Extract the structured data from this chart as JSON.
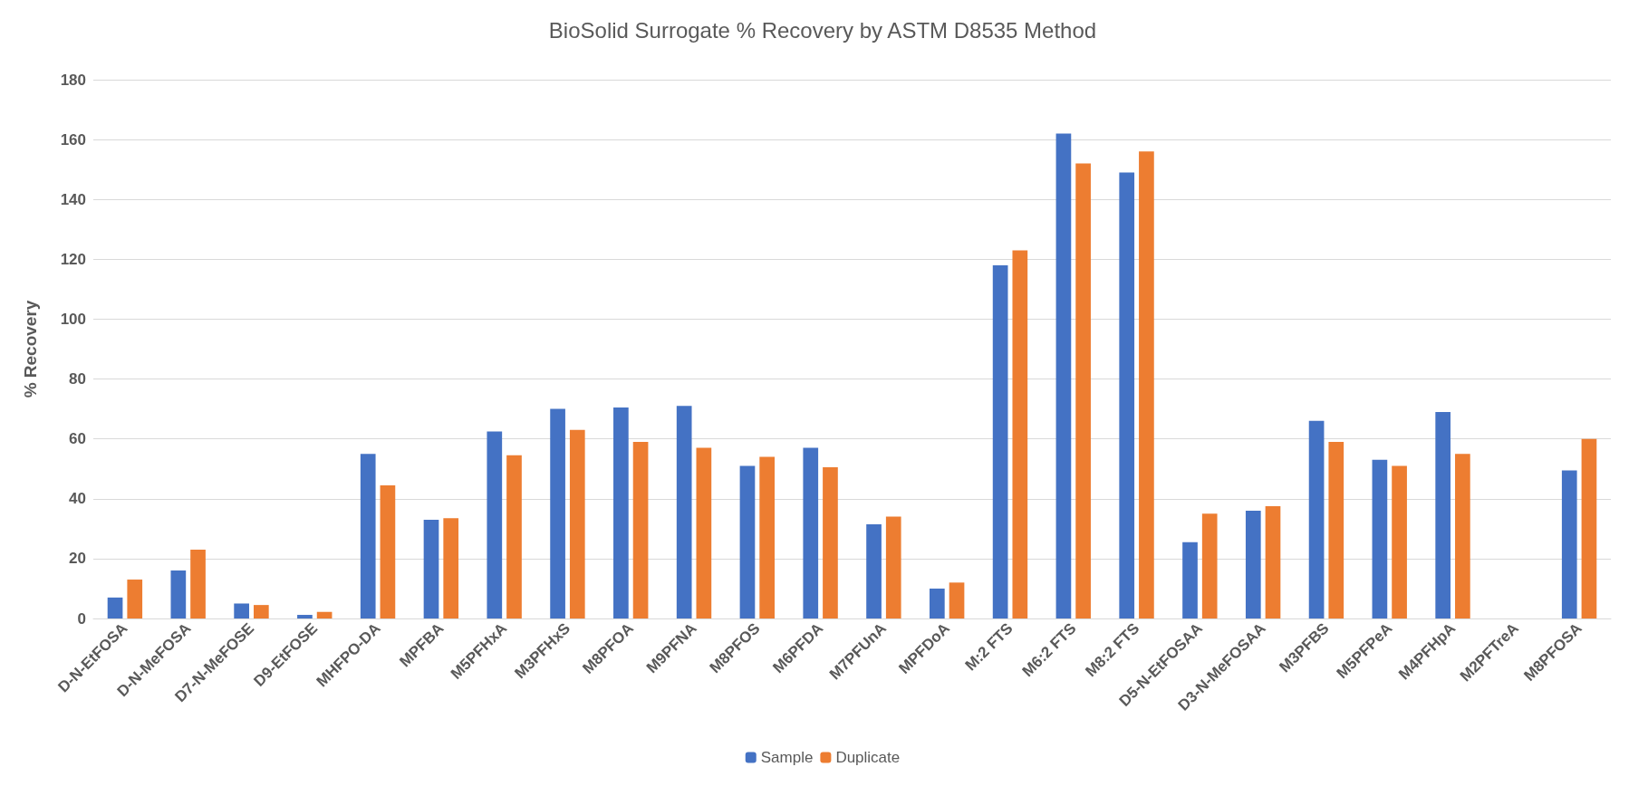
{
  "chart_data": {
    "type": "bar",
    "title": "BioSolid Surrogate % Recovery by ASTM D8535 Method",
    "ylabel": "% Recovery",
    "categories": [
      "D-N-EtFOSA",
      "D-N-MeFOSA",
      "D7-N-MeFOSE",
      "D9-EtFOSE",
      "MHFPO-DA",
      "MPFBA",
      "M5PFHxA",
      "M3PFHxS",
      "M8PFOA",
      "M9PFNA",
      "M8PFOS",
      "M6PFDA",
      "M7PFUnA",
      "MPFDoA",
      "M:2 FTS",
      "M6:2 FTS",
      "M8:2 FTS",
      "D5-N-EtFOSAA",
      "D3-N-MeFOSAA",
      "M3PFBS",
      "M5PFPeA",
      "M4PFHpA",
      "M2PFTreA",
      "M8PFOSA"
    ],
    "series": [
      {
        "name": "Sample",
        "color": "#4472c4",
        "values": [
          7,
          16,
          5,
          1.2,
          55,
          33,
          62.5,
          70,
          70.5,
          71,
          51,
          57,
          31.5,
          10,
          118,
          162,
          149,
          25.5,
          36,
          66,
          53,
          69,
          null,
          49.5
        ]
      },
      {
        "name": "Duplicate",
        "color": "#ed7d31",
        "values": [
          13,
          23,
          4.5,
          2.2,
          44.5,
          33.5,
          54.5,
          63,
          59,
          57,
          54,
          50.5,
          34,
          12,
          123,
          152,
          156,
          35,
          37.5,
          59,
          51,
          55,
          null,
          60
        ]
      }
    ],
    "ylim": [
      0,
      180
    ],
    "yticks": [
      0,
      20,
      40,
      60,
      80,
      100,
      120,
      140,
      160,
      180
    ],
    "grid": "y",
    "legend": "bottom"
  }
}
